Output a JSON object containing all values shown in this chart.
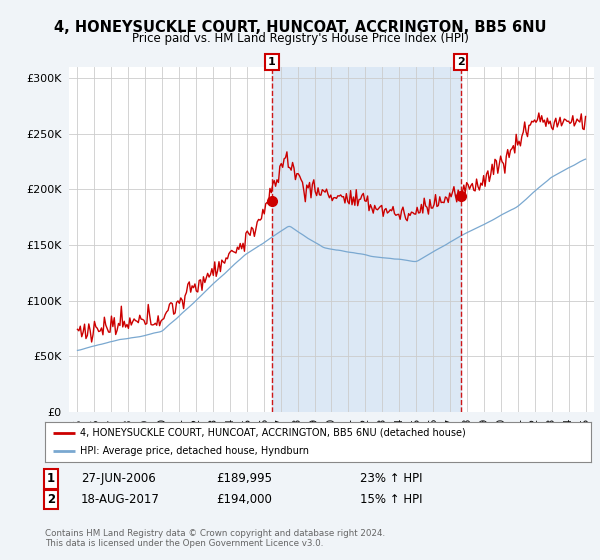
{
  "title": "4, HONEYSUCKLE COURT, HUNCOAT, ACCRINGTON, BB5 6NU",
  "subtitle": "Price paid vs. HM Land Registry's House Price Index (HPI)",
  "background_color": "#f0f4f8",
  "plot_bg_color": "#ffffff",
  "shaded_region_color": "#dce8f5",
  "sale1_date": "27-JUN-2006",
  "sale1_price": 189995,
  "sale1_hpi_pct": "23%",
  "sale2_date": "18-AUG-2017",
  "sale2_price": 194000,
  "sale2_hpi_pct": "15%",
  "legend_label1": "4, HONEYSUCKLE COURT, HUNCOAT, ACCRINGTON, BB5 6NU (detached house)",
  "legend_label2": "HPI: Average price, detached house, Hyndburn",
  "footer": "Contains HM Land Registry data © Crown copyright and database right 2024.\nThis data is licensed under the Open Government Licence v3.0.",
  "red_color": "#cc0000",
  "blue_color": "#7aa8d0",
  "marker1_x": 2006.49,
  "marker1_y": 189995,
  "marker2_x": 2017.63,
  "marker2_y": 194000,
  "ylim": [
    0,
    310000
  ],
  "xlim": [
    1994.5,
    2025.5
  ]
}
